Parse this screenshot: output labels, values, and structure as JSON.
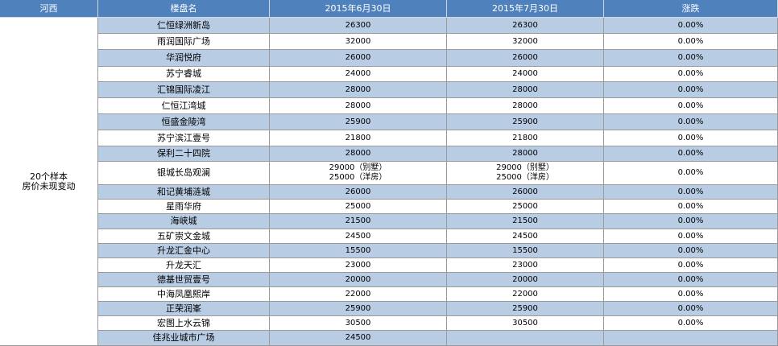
{
  "table": {
    "header": [
      "河西",
      "楼盘名",
      "2015年6月30日",
      "2015年7月30日",
      "涨跌"
    ],
    "side": [
      "20个样本",
      "房价未现变动"
    ],
    "rows": [
      {
        "name": "仁恒绿洲新岛",
        "jun": [
          "26300"
        ],
        "jul": [
          "26300"
        ],
        "change": "0.00%"
      },
      {
        "name": "雨润国际广场",
        "jun": [
          "32000"
        ],
        "jul": [
          "32000"
        ],
        "change": "0.00%"
      },
      {
        "name": "华润悦府",
        "jun": [
          "26000"
        ],
        "jul": [
          "26000"
        ],
        "change": "0.00%"
      },
      {
        "name": "苏宁睿城",
        "jun": [
          "24000"
        ],
        "jul": [
          "24000"
        ],
        "change": "0.00%"
      },
      {
        "name": "汇锦国际凌江",
        "jun": [
          "28000"
        ],
        "jul": [
          "28000"
        ],
        "change": "0.00%"
      },
      {
        "name": "仁恒江湾城",
        "jun": [
          "28000"
        ],
        "jul": [
          "28000"
        ],
        "change": "0.00%"
      },
      {
        "name": "恒盛金陵湾",
        "jun": [
          "25900"
        ],
        "jul": [
          "25900"
        ],
        "change": "0.00%"
      },
      {
        "name": "苏宁滨江壹号",
        "jun": [
          "21800"
        ],
        "jul": [
          "21800"
        ],
        "change": "0.00%"
      },
      {
        "name": "保利二十四院",
        "jun": [
          "28000"
        ],
        "jul": [
          "28000"
        ],
        "change": "0.00%"
      },
      {
        "name": "银城长岛观澜",
        "jun": [
          "29000（别墅）",
          "25000（洋房）"
        ],
        "jul": [
          "29000（别墅）",
          "25000（洋房）"
        ],
        "change": "0.00%"
      },
      {
        "name": "和记黄埔涟城",
        "jun": [
          "26000"
        ],
        "jul": [
          "26000"
        ],
        "change": "0.00%"
      },
      {
        "name": "星雨华府",
        "jun": [
          "25000"
        ],
        "jul": [
          "25000"
        ],
        "change": "0.00%"
      },
      {
        "name": "海峡城",
        "jun": [
          "21500"
        ],
        "jul": [
          "21500"
        ],
        "change": "0.00%"
      },
      {
        "name": "五矿崇文金城",
        "jun": [
          "24500"
        ],
        "jul": [
          "24500"
        ],
        "change": "0.00%"
      },
      {
        "name": "升龙汇金中心",
        "jun": [
          "15500"
        ],
        "jul": [
          "15500"
        ],
        "change": "0.00%"
      },
      {
        "name": "升龙天汇",
        "jun": [
          "23000"
        ],
        "jul": [
          "23000"
        ],
        "change": "0.00%"
      },
      {
        "name": "德基世贸壹号",
        "jun": [
          "20000"
        ],
        "jul": [
          "20000"
        ],
        "change": "0.00%"
      },
      {
        "name": "中海凤凰熙岸",
        "jun": [
          "22000"
        ],
        "jul": [
          "22000"
        ],
        "change": "0.00%"
      },
      {
        "name": "正荣润峯",
        "jun": [
          "25900"
        ],
        "jul": [
          "25900"
        ],
        "change": "0.00%"
      },
      {
        "name": "宏图上水云锦",
        "jun": [
          "30500"
        ],
        "jul": [
          "30500"
        ],
        "change": "0.00%"
      },
      {
        "name": "佳兆业城市广场",
        "jun": [
          "24500"
        ],
        "jul": [],
        "change": null
      }
    ]
  }
}
